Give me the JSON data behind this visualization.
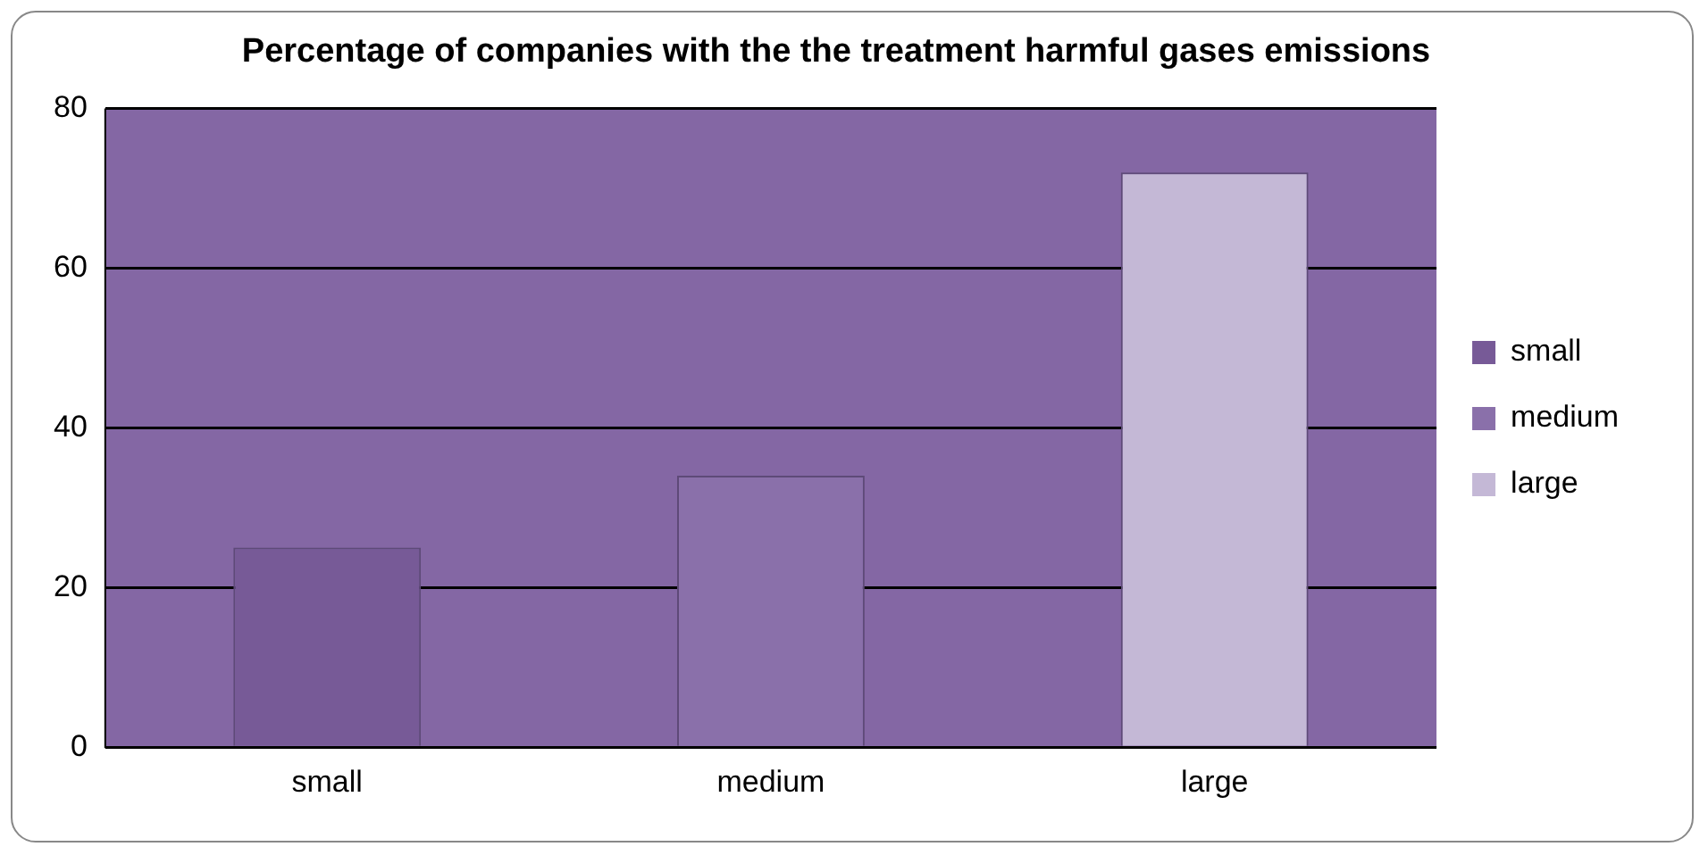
{
  "chart_data": {
    "type": "bar",
    "title": "Percentage of companies with the the treatment harmful gases emissions",
    "categories": [
      "small",
      "medium",
      "large"
    ],
    "series": [
      {
        "name": "small",
        "color": "#775a97",
        "values": [
          25,
          null,
          null
        ]
      },
      {
        "name": "medium",
        "color": "#8a70aa",
        "values": [
          null,
          34,
          null
        ]
      },
      {
        "name": "large",
        "color": "#c4b8d6",
        "values": [
          null,
          null,
          72
        ]
      }
    ],
    "ylim": [
      0,
      80
    ],
    "yticks": [
      0,
      20,
      40,
      60,
      80
    ],
    "grid": "y",
    "legend": "right"
  }
}
